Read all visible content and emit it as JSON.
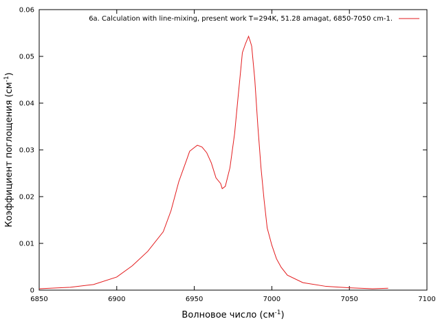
{
  "chart_data": {
    "type": "line",
    "xlabel": "Волновое число (см",
    "xlabel_sup": "-1",
    "xlabel_tail": ")",
    "ylabel": "Коэффициент поглощения (см",
    "ylabel_sup": "-1",
    "ylabel_tail": ")",
    "xlim": [
      6850,
      7100
    ],
    "ylim": [
      0,
      0.06
    ],
    "xticks": [
      6850,
      6900,
      6950,
      7000,
      7050,
      7100
    ],
    "xtick_labels": [
      "6850",
      "6900",
      "6950",
      "7000",
      "7050",
      "7100"
    ],
    "yticks": [
      0,
      0.01,
      0.02,
      0.03,
      0.04,
      0.05,
      0.06
    ],
    "ytick_labels": [
      "0",
      "0.01",
      "0.02",
      "0.03",
      "0.04",
      "0.05",
      "0.06"
    ],
    "grid": false,
    "legend_position": "top-right",
    "series": [
      {
        "name": "6a. Calculation with line-mixing, present work T=294K, 51.28 amagat,  6850-7050 cm-1.",
        "color": "#e31a1c",
        "x": [
          6850,
          6870,
          6885,
          6900,
          6910,
          6920,
          6930,
          6935,
          6940,
          6945,
          6947,
          6950,
          6952,
          6955,
          6958,
          6961,
          6964,
          6967,
          6968,
          6970,
          6973,
          6976,
          6978,
          6980,
          6981,
          6983,
          6985,
          6986,
          6987,
          6989,
          6991,
          6993,
          6995,
          6997,
          7000,
          7003,
          7006,
          7010,
          7020,
          7035,
          7050,
          7065,
          7075
        ],
        "y": [
          0.0003,
          0.0006,
          0.0012,
          0.0028,
          0.0052,
          0.0083,
          0.0125,
          0.017,
          0.0232,
          0.0278,
          0.0297,
          0.0305,
          0.031,
          0.0306,
          0.0294,
          0.0272,
          0.024,
          0.0228,
          0.0217,
          0.0222,
          0.0262,
          0.0335,
          0.0405,
          0.0473,
          0.0508,
          0.0527,
          0.0543,
          0.0533,
          0.0522,
          0.0451,
          0.035,
          0.0262,
          0.0193,
          0.0133,
          0.0096,
          0.0067,
          0.0049,
          0.0032,
          0.0016,
          0.0008,
          0.0005,
          0.0003,
          0.0004
        ]
      }
    ]
  }
}
